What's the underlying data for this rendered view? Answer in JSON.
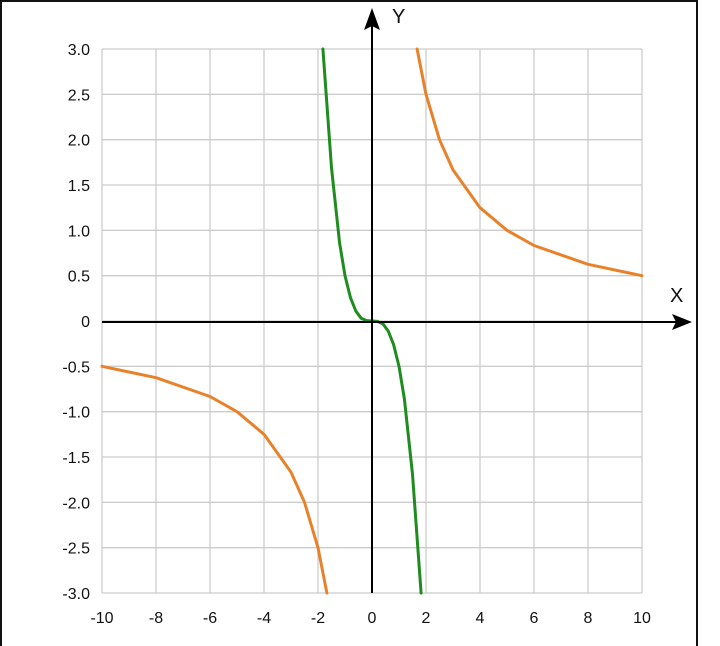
{
  "chart_data": {
    "type": "line",
    "title": "",
    "xlabel": "X",
    "ylabel": "Y",
    "xlim": [
      -10,
      10
    ],
    "ylim": [
      -3,
      3
    ],
    "grid": true,
    "x_ticks": [
      "-10",
      "-8",
      "-6",
      "-4",
      "-2",
      "0",
      "2",
      "4",
      "6",
      "8",
      "10"
    ],
    "y_ticks": [
      "3.0",
      "2.5",
      "2.0",
      "1.5",
      "1.0",
      "0.5",
      "0",
      "-0.5",
      "-1.0",
      "-1.5",
      "-2.0",
      "-2.5",
      "-3.0"
    ],
    "series": [
      {
        "color": "#e8822a",
        "segments": [
          [
            [
              -10,
              -0.5
            ],
            [
              -8,
              -0.625
            ],
            [
              -6,
              -0.833
            ],
            [
              -5,
              -1.0
            ],
            [
              -4,
              -1.25
            ],
            [
              -3,
              -1.667
            ],
            [
              -2.5,
              -2.0
            ],
            [
              -2,
              -2.5
            ],
            [
              -1.67,
              -3.0
            ]
          ],
          [
            [
              1.67,
              3.0
            ],
            [
              2,
              2.5
            ],
            [
              2.5,
              2.0
            ],
            [
              3,
              1.667
            ],
            [
              4,
              1.25
            ],
            [
              5,
              1.0
            ],
            [
              6,
              0.833
            ],
            [
              8,
              0.625
            ],
            [
              10,
              0.5
            ]
          ]
        ]
      },
      {
        "color": "#1e8c1e",
        "segments": [
          [
            [
              -1.82,
              3.0
            ],
            [
              -1.5,
              1.69
            ],
            [
              -1.2,
              0.86
            ],
            [
              -1.0,
              0.5
            ],
            [
              -0.8,
              0.26
            ],
            [
              -0.6,
              0.11
            ],
            [
              -0.4,
              0.03
            ],
            [
              -0.2,
              0.004
            ],
            [
              0,
              0
            ],
            [
              0.2,
              -0.004
            ],
            [
              0.4,
              -0.03
            ],
            [
              0.6,
              -0.11
            ],
            [
              0.8,
              -0.26
            ],
            [
              1.0,
              -0.5
            ],
            [
              1.2,
              -0.86
            ],
            [
              1.5,
              -1.69
            ],
            [
              1.82,
              -3.0
            ]
          ]
        ]
      }
    ]
  }
}
